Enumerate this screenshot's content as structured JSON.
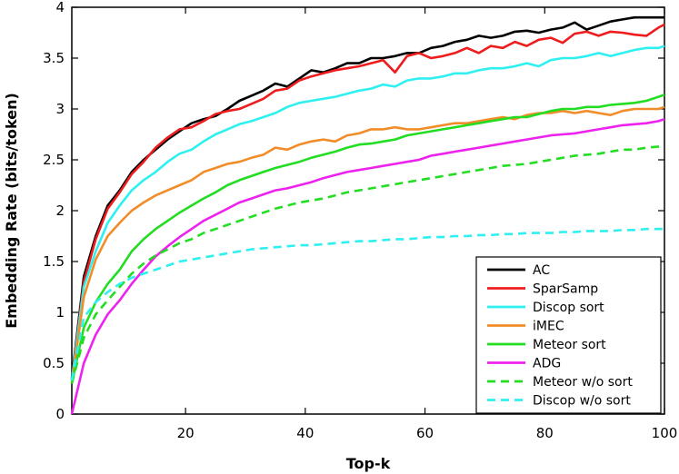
{
  "chart_data": {
    "type": "line",
    "title": "",
    "xlabel": "Top-k",
    "ylabel": "Embedding Rate (bits/token)",
    "xlim": [
      1,
      100
    ],
    "ylim": [
      0,
      4
    ],
    "xticks": [
      20,
      40,
      60,
      80,
      100
    ],
    "yticks": [
      0,
      0.5,
      1,
      1.5,
      2,
      2.5,
      3,
      3.5,
      4
    ],
    "grid": false,
    "legend_position": "bottom-right",
    "x": [
      1,
      3,
      5,
      7,
      9,
      11,
      13,
      15,
      17,
      19,
      21,
      23,
      25,
      27,
      29,
      31,
      33,
      35,
      37,
      39,
      41,
      43,
      45,
      47,
      49,
      51,
      53,
      55,
      57,
      59,
      61,
      63,
      65,
      67,
      69,
      71,
      73,
      75,
      77,
      79,
      81,
      83,
      85,
      87,
      89,
      91,
      93,
      95,
      97,
      99,
      100
    ],
    "series": [
      {
        "name": "AC",
        "color": "#000000",
        "dash": "solid",
        "values": [
          0.35,
          1.35,
          1.75,
          2.05,
          2.2,
          2.38,
          2.5,
          2.6,
          2.7,
          2.78,
          2.86,
          2.9,
          2.93,
          3.0,
          3.08,
          3.13,
          3.18,
          3.25,
          3.22,
          3.3,
          3.38,
          3.36,
          3.4,
          3.45,
          3.45,
          3.5,
          3.5,
          3.52,
          3.55,
          3.55,
          3.6,
          3.62,
          3.66,
          3.68,
          3.72,
          3.7,
          3.72,
          3.76,
          3.77,
          3.75,
          3.78,
          3.8,
          3.85,
          3.78,
          3.82,
          3.86,
          3.88,
          3.9,
          3.9,
          3.9,
          3.9
        ]
      },
      {
        "name": "SparSamp",
        "color": "#ee1c1c",
        "dash": "solid",
        "values": [
          0.33,
          1.3,
          1.72,
          2.02,
          2.18,
          2.36,
          2.48,
          2.62,
          2.72,
          2.8,
          2.82,
          2.88,
          2.95,
          2.98,
          3.0,
          3.05,
          3.1,
          3.18,
          3.2,
          3.28,
          3.32,
          3.35,
          3.38,
          3.4,
          3.42,
          3.45,
          3.48,
          3.36,
          3.52,
          3.55,
          3.5,
          3.52,
          3.55,
          3.6,
          3.55,
          3.62,
          3.6,
          3.66,
          3.62,
          3.68,
          3.7,
          3.65,
          3.74,
          3.76,
          3.72,
          3.76,
          3.75,
          3.73,
          3.72,
          3.8,
          3.83
        ]
      },
      {
        "name": "Discop sort",
        "color": "#2ef0f0",
        "dash": "solid",
        "values": [
          0.33,
          1.25,
          1.6,
          1.88,
          2.05,
          2.2,
          2.3,
          2.38,
          2.48,
          2.56,
          2.6,
          2.68,
          2.75,
          2.8,
          2.85,
          2.88,
          2.92,
          2.96,
          3.02,
          3.06,
          3.08,
          3.1,
          3.12,
          3.15,
          3.18,
          3.2,
          3.24,
          3.22,
          3.28,
          3.3,
          3.3,
          3.32,
          3.35,
          3.35,
          3.38,
          3.4,
          3.4,
          3.42,
          3.45,
          3.42,
          3.48,
          3.5,
          3.5,
          3.52,
          3.55,
          3.52,
          3.55,
          3.58,
          3.6,
          3.6,
          3.62
        ]
      },
      {
        "name": "iMEC",
        "color": "#f28c28",
        "dash": "solid",
        "values": [
          0.3,
          1.15,
          1.52,
          1.75,
          1.88,
          2.0,
          2.08,
          2.15,
          2.2,
          2.25,
          2.3,
          2.38,
          2.42,
          2.46,
          2.48,
          2.52,
          2.55,
          2.62,
          2.6,
          2.65,
          2.68,
          2.7,
          2.68,
          2.74,
          2.76,
          2.8,
          2.8,
          2.82,
          2.8,
          2.8,
          2.82,
          2.84,
          2.86,
          2.86,
          2.88,
          2.9,
          2.92,
          2.9,
          2.94,
          2.96,
          2.96,
          2.98,
          2.96,
          2.98,
          2.96,
          2.94,
          2.98,
          3.0,
          3.0,
          3.0,
          3.02
        ]
      },
      {
        "name": "Meteor sort",
        "color": "#22dd22",
        "dash": "solid",
        "values": [
          0.3,
          0.85,
          1.1,
          1.28,
          1.42,
          1.6,
          1.72,
          1.82,
          1.9,
          1.98,
          2.05,
          2.12,
          2.18,
          2.25,
          2.3,
          2.34,
          2.38,
          2.42,
          2.45,
          2.48,
          2.52,
          2.55,
          2.58,
          2.62,
          2.65,
          2.66,
          2.68,
          2.7,
          2.74,
          2.76,
          2.78,
          2.8,
          2.82,
          2.84,
          2.86,
          2.88,
          2.9,
          2.92,
          2.92,
          2.95,
          2.98,
          3.0,
          3.0,
          3.02,
          3.02,
          3.04,
          3.05,
          3.06,
          3.08,
          3.12,
          3.14
        ]
      },
      {
        "name": "ADG",
        "color": "#ee22ee",
        "dash": "solid",
        "values": [
          0.0,
          0.5,
          0.78,
          0.98,
          1.12,
          1.28,
          1.42,
          1.55,
          1.65,
          1.74,
          1.82,
          1.9,
          1.96,
          2.02,
          2.08,
          2.12,
          2.16,
          2.2,
          2.22,
          2.25,
          2.28,
          2.32,
          2.35,
          2.38,
          2.4,
          2.42,
          2.44,
          2.46,
          2.48,
          2.5,
          2.54,
          2.56,
          2.58,
          2.6,
          2.62,
          2.64,
          2.66,
          2.68,
          2.7,
          2.72,
          2.74,
          2.75,
          2.76,
          2.78,
          2.8,
          2.82,
          2.84,
          2.85,
          2.86,
          2.88,
          2.9
        ]
      },
      {
        "name": "Meteor w/o sort",
        "color": "#22dd22",
        "dash": "dashed",
        "values": [
          0.3,
          0.75,
          0.98,
          1.12,
          1.25,
          1.38,
          1.48,
          1.56,
          1.62,
          1.68,
          1.72,
          1.78,
          1.82,
          1.86,
          1.9,
          1.94,
          1.98,
          2.02,
          2.05,
          2.08,
          2.1,
          2.12,
          2.15,
          2.18,
          2.2,
          2.22,
          2.24,
          2.26,
          2.28,
          2.3,
          2.32,
          2.34,
          2.36,
          2.38,
          2.4,
          2.42,
          2.44,
          2.45,
          2.46,
          2.48,
          2.5,
          2.52,
          2.54,
          2.55,
          2.56,
          2.58,
          2.6,
          2.6,
          2.62,
          2.63,
          2.64
        ]
      },
      {
        "name": "Discop w/o sort",
        "color": "#2ef0f0",
        "dash": "dashed",
        "values": [
          0.33,
          0.95,
          1.1,
          1.2,
          1.28,
          1.34,
          1.38,
          1.42,
          1.46,
          1.5,
          1.52,
          1.54,
          1.56,
          1.58,
          1.6,
          1.62,
          1.63,
          1.64,
          1.65,
          1.66,
          1.66,
          1.67,
          1.68,
          1.69,
          1.7,
          1.7,
          1.71,
          1.72,
          1.72,
          1.73,
          1.74,
          1.74,
          1.75,
          1.75,
          1.76,
          1.76,
          1.77,
          1.77,
          1.78,
          1.78,
          1.78,
          1.79,
          1.79,
          1.8,
          1.8,
          1.8,
          1.81,
          1.81,
          1.82,
          1.82,
          1.82
        ]
      }
    ]
  }
}
